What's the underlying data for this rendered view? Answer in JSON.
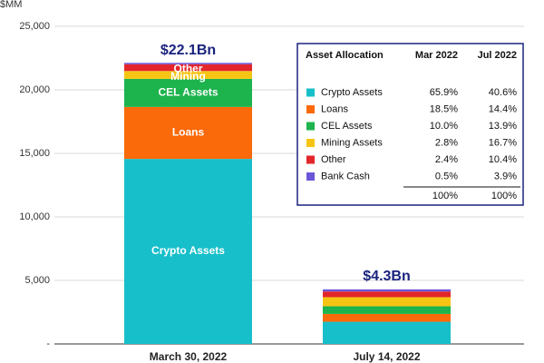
{
  "chart_data": {
    "type": "stacked_bar",
    "ylabel": "$MM",
    "categories": [
      "March 30, 2022",
      "July 14, 2022"
    ],
    "series": [
      {
        "name": "Crypto Assets",
        "color": "#17bfca",
        "values": [
          14564,
          1746
        ]
      },
      {
        "name": "Loans",
        "color": "#fa6a0a",
        "values": [
          4089,
          619
        ]
      },
      {
        "name": "CEL Assets",
        "color": "#1db34d",
        "values": [
          2210,
          598
        ]
      },
      {
        "name": "Mining Assets",
        "color": "#f6c514",
        "values": [
          619,
          718
        ]
      },
      {
        "name": "Other",
        "color": "#e3262b",
        "values": [
          530,
          447
        ]
      },
      {
        "name": "Bank Cash",
        "color": "#6a57d8",
        "values": [
          110,
          168
        ]
      }
    ],
    "segment_labels": [
      "Crypto Assets",
      "Loans",
      "CEL Assets",
      "Mining",
      "Other",
      null
    ],
    "totals": {
      "values": [
        22100,
        4300
      ],
      "value_labels": [
        "$22.1Bn",
        "$4.3Bn"
      ]
    },
    "ylim": [
      0,
      25000
    ],
    "yticks": [
      {
        "value": 0,
        "label": "-"
      },
      {
        "value": 5000,
        "label": "5,000"
      },
      {
        "value": 10000,
        "label": "10,000"
      },
      {
        "value": 15000,
        "label": "15,000"
      },
      {
        "value": 20000,
        "label": "20,000"
      },
      {
        "value": 25000,
        "label": "25,000"
      }
    ],
    "grid": true,
    "table": {
      "title": "Asset Allocation",
      "columns": [
        "Mar 2022",
        "Jul 2022"
      ],
      "shares": [
        [
          "65.9%",
          "40.6%"
        ],
        [
          "18.5%",
          "14.4%"
        ],
        [
          "10.0%",
          "13.9%"
        ],
        [
          "2.8%",
          "16.7%"
        ],
        [
          "2.4%",
          "10.4%"
        ],
        [
          "0.5%",
          "3.9%"
        ]
      ],
      "totals": [
        "100%",
        "100%"
      ]
    }
  }
}
